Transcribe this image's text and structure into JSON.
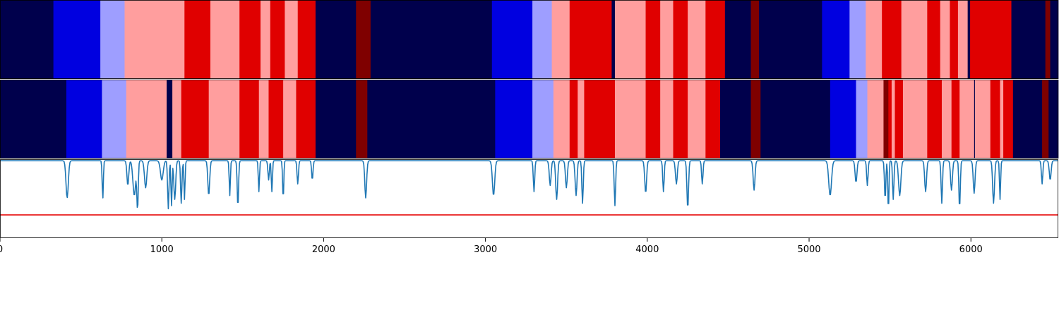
{
  "chart_data": {
    "type": "heatmap",
    "title": "",
    "xlabel": "",
    "ylabel": "",
    "xlim": [
      0,
      6540
    ],
    "grid": false,
    "legend": "none",
    "xticks": [
      0,
      1000,
      2000,
      3000,
      4000,
      5000,
      6000
    ],
    "colors": {
      "c0": "#00004c",
      "c1": "#0000e0",
      "c2": "#9e9eff",
      "c3": "#ff9e9e",
      "c4": "#e00000",
      "c5": "#7f0000",
      "line": "#1f77b4",
      "threshold": "#e60000"
    },
    "tracks": [
      {
        "segments": [
          [
            0,
            330,
            "c0"
          ],
          [
            330,
            620,
            "c1"
          ],
          [
            620,
            770,
            "c2"
          ],
          [
            770,
            1140,
            "c3"
          ],
          [
            1140,
            1300,
            "c4"
          ],
          [
            1300,
            1480,
            "c3"
          ],
          [
            1480,
            1610,
            "c4"
          ],
          [
            1610,
            1670,
            "c3"
          ],
          [
            1670,
            1760,
            "c4"
          ],
          [
            1760,
            1840,
            "c3"
          ],
          [
            1840,
            1950,
            "c4"
          ],
          [
            1950,
            2200,
            "c0"
          ],
          [
            2200,
            2290,
            "c5"
          ],
          [
            2290,
            3040,
            "c0"
          ],
          [
            3040,
            3290,
            "c1"
          ],
          [
            3290,
            3410,
            "c2"
          ],
          [
            3410,
            3520,
            "c3"
          ],
          [
            3520,
            3780,
            "c4"
          ],
          [
            3780,
            3800,
            "c0"
          ],
          [
            3800,
            3990,
            "c3"
          ],
          [
            3990,
            4080,
            "c4"
          ],
          [
            4080,
            4160,
            "c3"
          ],
          [
            4160,
            4250,
            "c4"
          ],
          [
            4250,
            4360,
            "c3"
          ],
          [
            4360,
            4480,
            "c4"
          ],
          [
            4480,
            4640,
            "c0"
          ],
          [
            4640,
            4690,
            "c5"
          ],
          [
            4690,
            5080,
            "c0"
          ],
          [
            5080,
            5250,
            "c1"
          ],
          [
            5250,
            5350,
            "c2"
          ],
          [
            5350,
            5450,
            "c3"
          ],
          [
            5450,
            5570,
            "c4"
          ],
          [
            5570,
            5730,
            "c3"
          ],
          [
            5730,
            5810,
            "c4"
          ],
          [
            5810,
            5870,
            "c3"
          ],
          [
            5870,
            5920,
            "c4"
          ],
          [
            5920,
            5980,
            "c3"
          ],
          [
            5980,
            5995,
            "c0"
          ],
          [
            5995,
            6100,
            "c4"
          ],
          [
            6100,
            6250,
            "c4"
          ],
          [
            6250,
            6460,
            "c0"
          ],
          [
            6460,
            6490,
            "c5"
          ],
          [
            6490,
            6540,
            "c0"
          ]
        ]
      },
      {
        "segments": [
          [
            0,
            410,
            "c0"
          ],
          [
            410,
            630,
            "c1"
          ],
          [
            630,
            780,
            "c2"
          ],
          [
            780,
            1030,
            "c3"
          ],
          [
            1030,
            1065,
            "c0"
          ],
          [
            1065,
            1120,
            "c3"
          ],
          [
            1120,
            1290,
            "c4"
          ],
          [
            1290,
            1480,
            "c3"
          ],
          [
            1480,
            1600,
            "c4"
          ],
          [
            1600,
            1660,
            "c3"
          ],
          [
            1660,
            1750,
            "c4"
          ],
          [
            1750,
            1830,
            "c3"
          ],
          [
            1830,
            1950,
            "c4"
          ],
          [
            1950,
            2200,
            "c0"
          ],
          [
            2200,
            2270,
            "c5"
          ],
          [
            2270,
            3060,
            "c0"
          ],
          [
            3060,
            3290,
            "c1"
          ],
          [
            3290,
            3420,
            "c2"
          ],
          [
            3420,
            3520,
            "c3"
          ],
          [
            3520,
            3570,
            "c4"
          ],
          [
            3570,
            3610,
            "c3"
          ],
          [
            3610,
            3800,
            "c4"
          ],
          [
            3800,
            3990,
            "c3"
          ],
          [
            3990,
            4080,
            "c4"
          ],
          [
            4080,
            4160,
            "c3"
          ],
          [
            4160,
            4250,
            "c4"
          ],
          [
            4250,
            4360,
            "c3"
          ],
          [
            4360,
            4450,
            "c4"
          ],
          [
            4450,
            4640,
            "c0"
          ],
          [
            4640,
            4700,
            "c5"
          ],
          [
            4700,
            5130,
            "c0"
          ],
          [
            5130,
            5290,
            "c1"
          ],
          [
            5290,
            5360,
            "c2"
          ],
          [
            5360,
            5460,
            "c3"
          ],
          [
            5460,
            5490,
            "c5"
          ],
          [
            5490,
            5510,
            "c4"
          ],
          [
            5510,
            5530,
            "c3"
          ],
          [
            5530,
            5580,
            "c4"
          ],
          [
            5580,
            5730,
            "c3"
          ],
          [
            5730,
            5820,
            "c4"
          ],
          [
            5820,
            5880,
            "c3"
          ],
          [
            5880,
            5930,
            "c4"
          ],
          [
            5930,
            6020,
            "c3"
          ],
          [
            6020,
            6025,
            "c0"
          ],
          [
            6025,
            6120,
            "c3"
          ],
          [
            6120,
            6180,
            "c4"
          ],
          [
            6180,
            6200,
            "c3"
          ],
          [
            6200,
            6260,
            "c4"
          ],
          [
            6260,
            6440,
            "c0"
          ],
          [
            6440,
            6480,
            "c5"
          ],
          [
            6480,
            6540,
            "c0"
          ]
        ]
      }
    ],
    "line_series": {
      "ylim": [
        -1.0,
        0.02
      ],
      "threshold": -0.7,
      "baseline": 0.0,
      "dips": [
        [
          415,
          0.48,
          10
        ],
        [
          635,
          0.5,
          5
        ],
        [
          790,
          0.32,
          8
        ],
        [
          830,
          0.45,
          12
        ],
        [
          850,
          0.62,
          6
        ],
        [
          900,
          0.35,
          10
        ],
        [
          1000,
          0.25,
          12
        ],
        [
          1040,
          0.62,
          6
        ],
        [
          1060,
          0.58,
          5
        ],
        [
          1080,
          0.5,
          8
        ],
        [
          1120,
          0.55,
          6
        ],
        [
          1140,
          0.5,
          5
        ],
        [
          1290,
          0.45,
          8
        ],
        [
          1420,
          0.45,
          5
        ],
        [
          1470,
          0.6,
          6
        ],
        [
          1600,
          0.4,
          5
        ],
        [
          1660,
          0.25,
          6
        ],
        [
          1680,
          0.4,
          5
        ],
        [
          1750,
          0.5,
          5
        ],
        [
          1840,
          0.3,
          6
        ],
        [
          1930,
          0.25,
          6
        ],
        [
          2260,
          0.48,
          8
        ],
        [
          3050,
          0.45,
          10
        ],
        [
          3300,
          0.4,
          6
        ],
        [
          3400,
          0.32,
          8
        ],
        [
          3440,
          0.5,
          8
        ],
        [
          3500,
          0.35,
          8
        ],
        [
          3560,
          0.45,
          8
        ],
        [
          3600,
          0.55,
          6
        ],
        [
          3800,
          0.58,
          6
        ],
        [
          3990,
          0.42,
          8
        ],
        [
          4100,
          0.4,
          6
        ],
        [
          4180,
          0.3,
          8
        ],
        [
          4250,
          0.62,
          7
        ],
        [
          4340,
          0.3,
          6
        ],
        [
          4660,
          0.38,
          8
        ],
        [
          5130,
          0.45,
          12
        ],
        [
          5290,
          0.28,
          8
        ],
        [
          5360,
          0.32,
          6
        ],
        [
          5470,
          0.5,
          6
        ],
        [
          5490,
          0.65,
          5
        ],
        [
          5520,
          0.5,
          6
        ],
        [
          5560,
          0.45,
          10
        ],
        [
          5720,
          0.4,
          8
        ],
        [
          5820,
          0.55,
          6
        ],
        [
          5880,
          0.38,
          8
        ],
        [
          5930,
          0.62,
          6
        ],
        [
          6020,
          0.42,
          8
        ],
        [
          6140,
          0.55,
          8
        ],
        [
          6180,
          0.5,
          5
        ],
        [
          6440,
          0.3,
          6
        ],
        [
          6490,
          0.25,
          8
        ]
      ]
    }
  }
}
